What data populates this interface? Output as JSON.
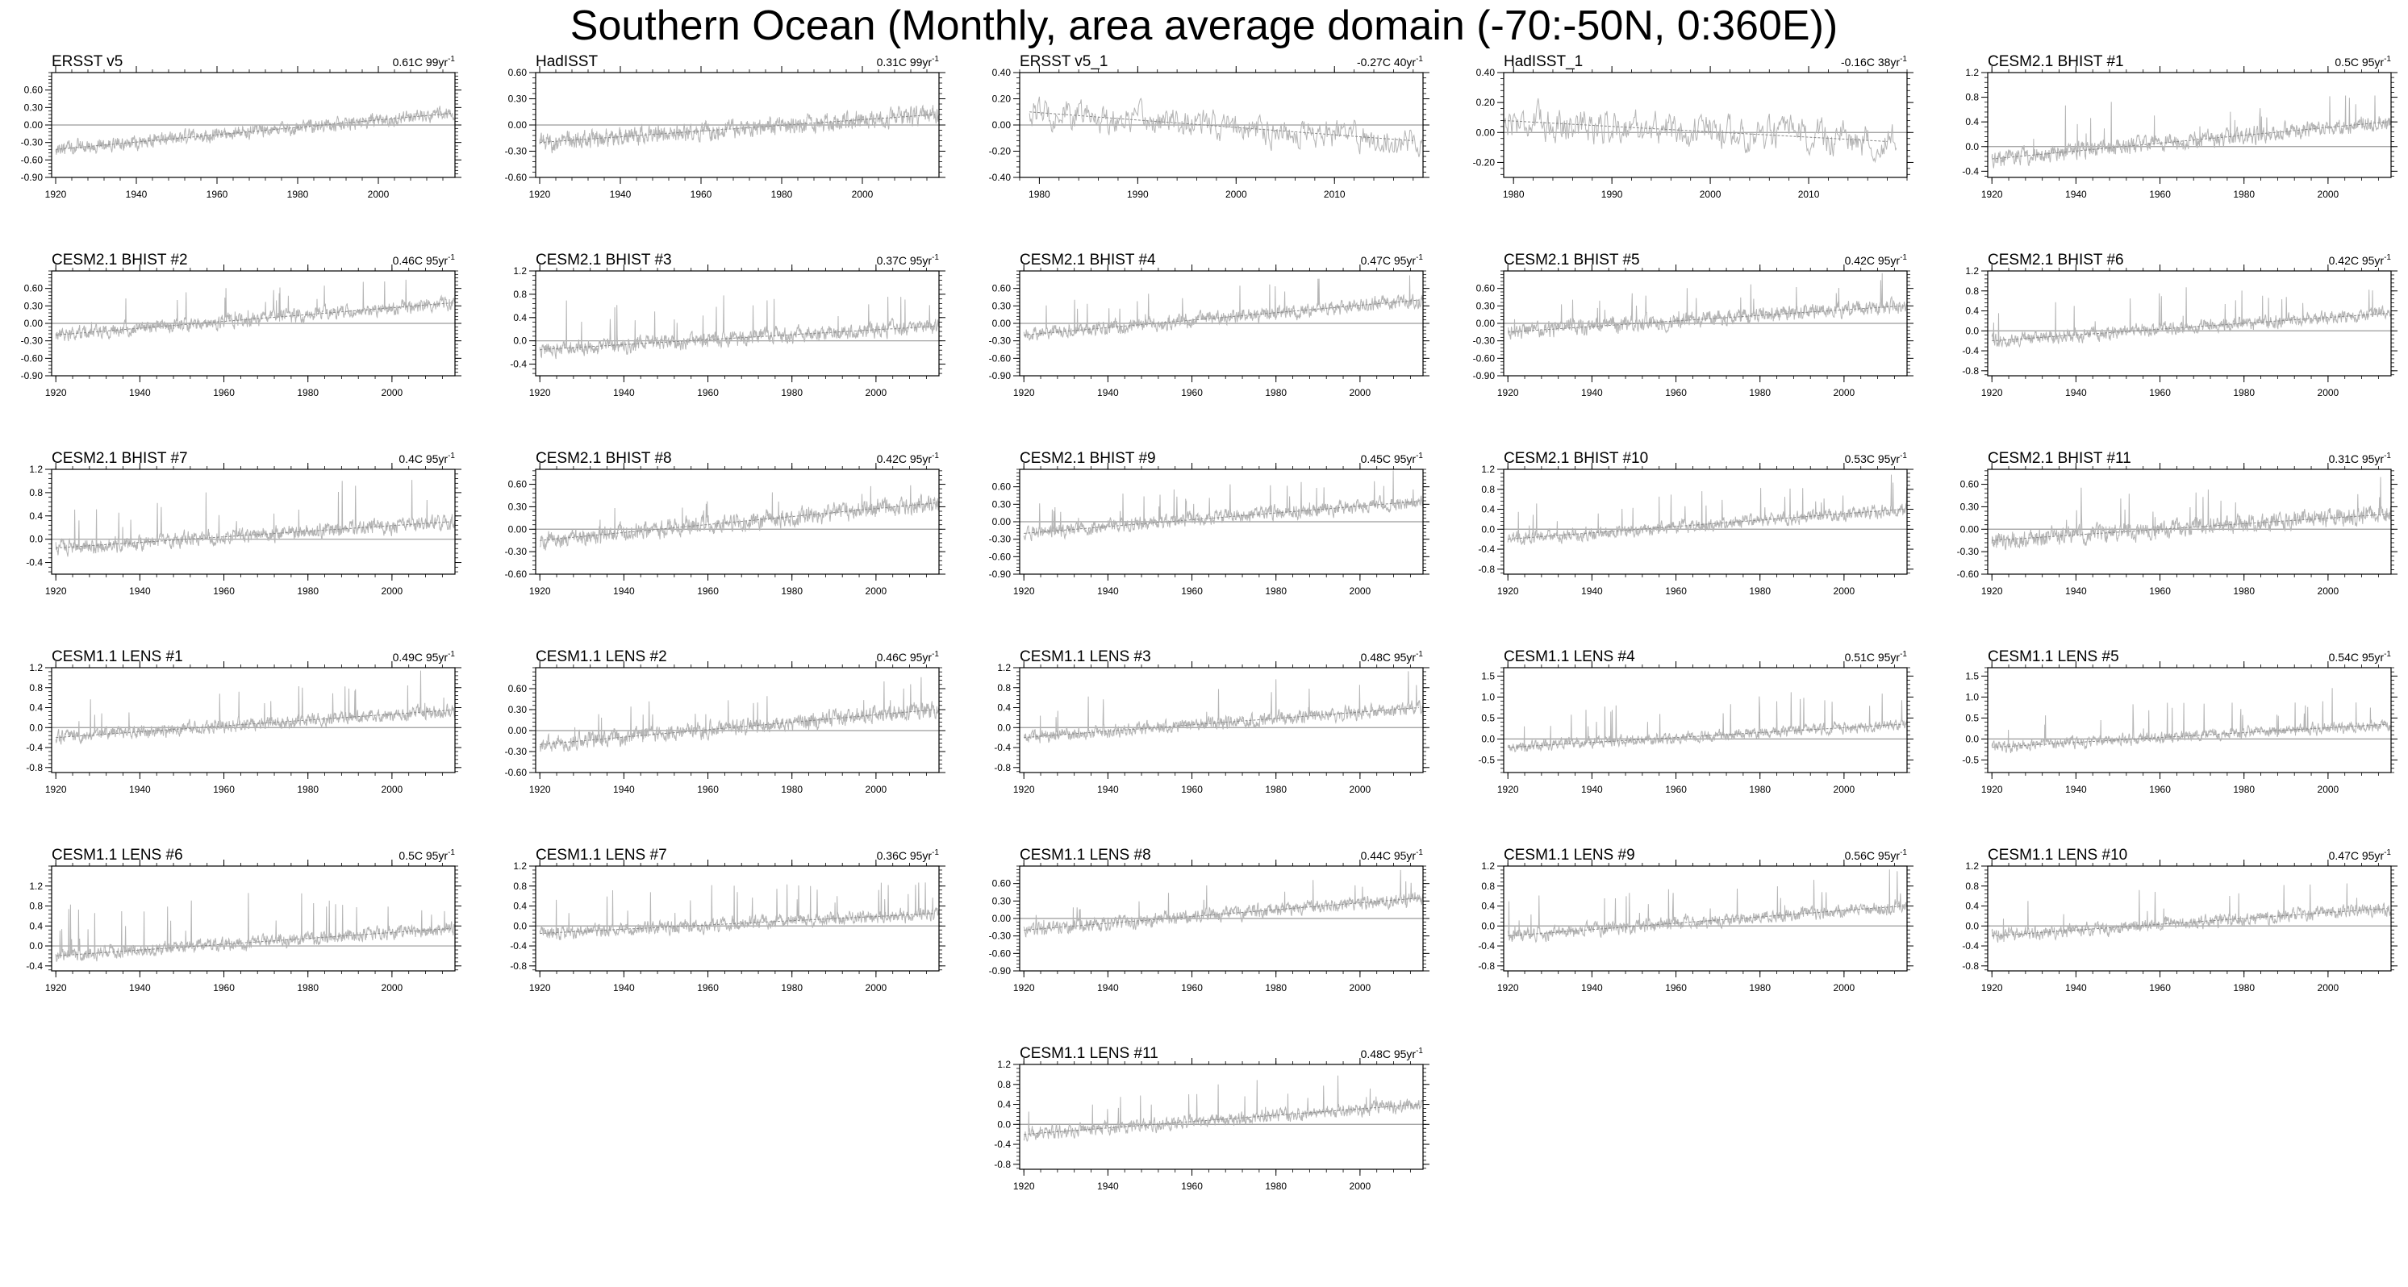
{
  "page": {
    "title": "Southern Ocean (Monthly, area average domain (-70:-50N, 0:360E))"
  },
  "chart_data": [
    {
      "type": "line",
      "title": "ERSST v5",
      "trend": "0.61C 99yr",
      "xlim": [
        1919,
        2019
      ],
      "xticks": [
        1920,
        1940,
        1960,
        1980,
        2000
      ],
      "yticks": [
        "0.60",
        "0.30",
        "0.00",
        "-0.30",
        "-0.60",
        "-0.90"
      ],
      "yvals": [
        0.6,
        0.3,
        0,
        -0.3,
        -0.6,
        -0.9
      ],
      "ylim": [
        -0.9,
        0.9
      ],
      "series": [
        {
          "start": 1920,
          "end": 2018,
          "trend_start": -0.42,
          "trend_end": 0.2,
          "noise": 0.09,
          "spike": 0.0
        }
      ]
    },
    {
      "type": "line",
      "title": "HadISST",
      "trend": "0.31C 99yr",
      "xlim": [
        1919,
        2019
      ],
      "xticks": [
        1920,
        1940,
        1960,
        1980,
        2000
      ],
      "yticks": [
        "0.60",
        "0.30",
        "0.00",
        "-0.30",
        "-0.60"
      ],
      "yvals": [
        0.6,
        0.3,
        0,
        -0.3,
        -0.6
      ],
      "ylim": [
        -0.6,
        0.6
      ],
      "series": [
        {
          "start": 1920,
          "end": 2018,
          "trend_start": -0.2,
          "trend_end": 0.12,
          "noise": 0.08,
          "spike": 0.0
        }
      ]
    },
    {
      "type": "line",
      "title": "ERSST v5_1",
      "trend": "-0.27C 40yr",
      "xlim": [
        1978,
        2019
      ],
      "xticks": [
        1980,
        1990,
        2000,
        2010
      ],
      "yticks": [
        "0.40",
        "0.20",
        "0.00",
        "-0.20",
        "-0.40"
      ],
      "yvals": [
        0.4,
        0.2,
        0,
        -0.2,
        -0.4
      ],
      "ylim": [
        -0.4,
        0.4
      ],
      "series": [
        {
          "start": 1979,
          "end": 2018,
          "trend_start": 0.1,
          "trend_end": -0.12,
          "noise": 0.09,
          "spike": 0.0
        }
      ]
    },
    {
      "type": "line",
      "title": "HadISST_1",
      "trend": "-0.16C 38yr",
      "xlim": [
        1979,
        2020
      ],
      "xticks": [
        1980,
        1990,
        2000,
        2010
      ],
      "yticks": [
        "0.40",
        "0.20",
        "0.00",
        "-0.20"
      ],
      "yvals": [
        0.4,
        0.2,
        0,
        -0.2
      ],
      "ylim": [
        -0.3,
        0.4
      ],
      "series": [
        {
          "start": 1979,
          "end": 2018,
          "trend_start": 0.08,
          "trend_end": -0.06,
          "noise": 0.09,
          "spike": 0.0
        }
      ]
    },
    {
      "type": "line",
      "title": "CESM2.1 BHIST #1",
      "trend": "0.5C 95yr",
      "xlim": [
        1919,
        2015
      ],
      "xticks": [
        1920,
        1940,
        1960,
        1980,
        2000
      ],
      "yticks": [
        "1.2",
        "0.8",
        "0.4",
        "0.0",
        "-0.4"
      ],
      "yvals": [
        1.2,
        0.8,
        0.4,
        0,
        -0.4
      ],
      "ylim": [
        -0.5,
        1.2
      ],
      "series": [
        {
          "start": 1920,
          "end": 2014,
          "trend_start": -0.2,
          "trend_end": 0.4,
          "noise": 0.1,
          "spike": 0.5
        }
      ]
    },
    {
      "type": "line",
      "title": "CESM2.1 BHIST #2",
      "trend": "0.46C 95yr",
      "xlim": [
        1919,
        2015
      ],
      "xticks": [
        1920,
        1940,
        1960,
        1980,
        2000
      ],
      "yticks": [
        "0.60",
        "0.30",
        "0.00",
        "-0.30",
        "-0.60",
        "-0.90"
      ],
      "yvals": [
        0.6,
        0.3,
        0,
        -0.3,
        -0.6,
        -0.9
      ],
      "ylim": [
        -0.9,
        0.9
      ],
      "series": [
        {
          "start": 1920,
          "end": 2014,
          "trend_start": -0.2,
          "trend_end": 0.35,
          "noise": 0.09,
          "spike": 0.35
        }
      ]
    },
    {
      "type": "line",
      "title": "CESM2.1 BHIST #3",
      "trend": "0.37C 95yr",
      "xlim": [
        1919,
        2015
      ],
      "xticks": [
        1920,
        1940,
        1960,
        1980,
        2000
      ],
      "yticks": [
        "1.2",
        "0.8",
        "0.4",
        "0.0",
        "-0.4"
      ],
      "yvals": [
        1.2,
        0.8,
        0.4,
        0,
        -0.4
      ],
      "ylim": [
        -0.6,
        1.2
      ],
      "series": [
        {
          "start": 1920,
          "end": 2014,
          "trend_start": -0.15,
          "trend_end": 0.25,
          "noise": 0.1,
          "spike": 0.5
        }
      ]
    },
    {
      "type": "line",
      "title": "CESM2.1 BHIST #4",
      "trend": "0.47C 95yr",
      "xlim": [
        1919,
        2015
      ],
      "xticks": [
        1920,
        1940,
        1960,
        1980,
        2000
      ],
      "yticks": [
        "0.60",
        "0.30",
        "0.00",
        "-0.30",
        "-0.60",
        "-0.90"
      ],
      "yvals": [
        0.6,
        0.3,
        0,
        -0.3,
        -0.6,
        -0.9
      ],
      "ylim": [
        -0.9,
        0.9
      ],
      "series": [
        {
          "start": 1920,
          "end": 2014,
          "trend_start": -0.2,
          "trend_end": 0.4,
          "noise": 0.09,
          "spike": 0.35
        }
      ]
    },
    {
      "type": "line",
      "title": "CESM2.1 BHIST #5",
      "trend": "0.42C 95yr",
      "xlim": [
        1919,
        2015
      ],
      "xticks": [
        1920,
        1940,
        1960,
        1980,
        2000
      ],
      "yticks": [
        "0.60",
        "0.30",
        "0.00",
        "-0.30",
        "-0.60",
        "-0.90"
      ],
      "yvals": [
        0.6,
        0.3,
        0,
        -0.3,
        -0.6,
        -0.9
      ],
      "ylim": [
        -0.9,
        0.9
      ],
      "series": [
        {
          "start": 1920,
          "end": 2014,
          "trend_start": -0.15,
          "trend_end": 0.3,
          "noise": 0.1,
          "spike": 0.35
        }
      ]
    },
    {
      "type": "line",
      "title": "CESM2.1 BHIST #6",
      "trend": "0.42C 95yr",
      "xlim": [
        1919,
        2015
      ],
      "xticks": [
        1920,
        1940,
        1960,
        1980,
        2000
      ],
      "yticks": [
        "1.2",
        "0.8",
        "0.4",
        "0.0",
        "-0.4",
        "-0.8"
      ],
      "yvals": [
        1.2,
        0.8,
        0.4,
        0,
        -0.4,
        -0.8
      ],
      "ylim": [
        -0.9,
        1.2
      ],
      "series": [
        {
          "start": 1920,
          "end": 2014,
          "trend_start": -0.2,
          "trend_end": 0.35,
          "noise": 0.1,
          "spike": 0.5
        }
      ]
    },
    {
      "type": "line",
      "title": "CESM2.1 BHIST #7",
      "trend": "0.4C 95yr",
      "xlim": [
        1919,
        2015
      ],
      "xticks": [
        1920,
        1940,
        1960,
        1980,
        2000
      ],
      "yticks": [
        "1.2",
        "0.8",
        "0.4",
        "0.0",
        "-0.4"
      ],
      "yvals": [
        1.2,
        0.8,
        0.4,
        0,
        -0.4
      ],
      "ylim": [
        -0.6,
        1.2
      ],
      "series": [
        {
          "start": 1920,
          "end": 2014,
          "trend_start": -0.15,
          "trend_end": 0.3,
          "noise": 0.1,
          "spike": 0.5
        }
      ]
    },
    {
      "type": "line",
      "title": "CESM2.1 BHIST #8",
      "trend": "0.42C 95yr",
      "xlim": [
        1919,
        2015
      ],
      "xticks": [
        1920,
        1940,
        1960,
        1980,
        2000
      ],
      "yticks": [
        "0.60",
        "0.30",
        "0.00",
        "-0.30",
        "-0.60"
      ],
      "yvals": [
        0.6,
        0.3,
        0,
        -0.3,
        -0.6
      ],
      "ylim": [
        -0.6,
        0.8
      ],
      "series": [
        {
          "start": 1920,
          "end": 2014,
          "trend_start": -0.15,
          "trend_end": 0.35,
          "noise": 0.09,
          "spike": 0.3
        }
      ]
    },
    {
      "type": "line",
      "title": "CESM2.1 BHIST #9",
      "trend": "0.45C 95yr",
      "xlim": [
        1919,
        2015
      ],
      "xticks": [
        1920,
        1940,
        1960,
        1980,
        2000
      ],
      "yticks": [
        "0.60",
        "0.30",
        "0.00",
        "-0.30",
        "-0.60",
        "-0.90"
      ],
      "yvals": [
        0.6,
        0.3,
        0,
        -0.3,
        -0.6,
        -0.9
      ],
      "ylim": [
        -0.9,
        0.9
      ],
      "series": [
        {
          "start": 1920,
          "end": 2014,
          "trend_start": -0.2,
          "trend_end": 0.35,
          "noise": 0.09,
          "spike": 0.35
        }
      ]
    },
    {
      "type": "line",
      "title": "CESM2.1 BHIST #10",
      "trend": "0.53C 95yr",
      "xlim": [
        1919,
        2015
      ],
      "xticks": [
        1920,
        1940,
        1960,
        1980,
        2000
      ],
      "yticks": [
        "1.2",
        "0.8",
        "0.4",
        "0.0",
        "-0.4",
        "-0.8"
      ],
      "yvals": [
        1.2,
        0.8,
        0.4,
        0,
        -0.4,
        -0.8
      ],
      "ylim": [
        -0.9,
        1.2
      ],
      "series": [
        {
          "start": 1920,
          "end": 2014,
          "trend_start": -0.2,
          "trend_end": 0.4,
          "noise": 0.1,
          "spike": 0.5
        }
      ]
    },
    {
      "type": "line",
      "title": "CESM2.1 BHIST #11",
      "trend": "0.31C 95yr",
      "xlim": [
        1919,
        2015
      ],
      "xticks": [
        1920,
        1940,
        1960,
        1980,
        2000
      ],
      "yticks": [
        "0.60",
        "0.30",
        "0.00",
        "-0.30",
        "-0.60"
      ],
      "yvals": [
        0.6,
        0.3,
        0,
        -0.3,
        -0.6
      ],
      "ylim": [
        -0.6,
        0.8
      ],
      "series": [
        {
          "start": 1920,
          "end": 2014,
          "trend_start": -0.15,
          "trend_end": 0.2,
          "noise": 0.09,
          "spike": 0.35
        }
      ]
    },
    {
      "type": "line",
      "title": "CESM1.1 LENS #1",
      "trend": "0.49C 95yr",
      "xlim": [
        1919,
        2015
      ],
      "xticks": [
        1920,
        1940,
        1960,
        1980,
        2000
      ],
      "yticks": [
        "1.2",
        "0.8",
        "0.4",
        "0.0",
        "-0.4",
        "-0.8"
      ],
      "yvals": [
        1.2,
        0.8,
        0.4,
        0,
        -0.4,
        -0.8
      ],
      "ylim": [
        -0.9,
        1.2
      ],
      "series": [
        {
          "start": 1920,
          "end": 2014,
          "trend_start": -0.2,
          "trend_end": 0.35,
          "noise": 0.1,
          "spike": 0.5
        }
      ]
    },
    {
      "type": "line",
      "title": "CESM1.1 LENS #2",
      "trend": "0.46C 95yr",
      "xlim": [
        1919,
        2015
      ],
      "xticks": [
        1920,
        1940,
        1960,
        1980,
        2000
      ],
      "yticks": [
        "0.60",
        "0.30",
        "0.00",
        "-0.30",
        "-0.60"
      ],
      "yvals": [
        0.6,
        0.3,
        0,
        -0.3,
        -0.6
      ],
      "ylim": [
        -0.6,
        0.9
      ],
      "series": [
        {
          "start": 1920,
          "end": 2014,
          "trend_start": -0.2,
          "trend_end": 0.3,
          "noise": 0.09,
          "spike": 0.35
        }
      ]
    },
    {
      "type": "line",
      "title": "CESM1.1 LENS #3",
      "trend": "0.48C 95yr",
      "xlim": [
        1919,
        2015
      ],
      "xticks": [
        1920,
        1940,
        1960,
        1980,
        2000
      ],
      "yticks": [
        "1.2",
        "0.8",
        "0.4",
        "0.0",
        "-0.4",
        "-0.8"
      ],
      "yvals": [
        1.2,
        0.8,
        0.4,
        0,
        -0.4,
        -0.8
      ],
      "ylim": [
        -0.9,
        1.2
      ],
      "series": [
        {
          "start": 1920,
          "end": 2014,
          "trend_start": -0.2,
          "trend_end": 0.4,
          "noise": 0.1,
          "spike": 0.5
        }
      ]
    },
    {
      "type": "line",
      "title": "CESM1.1 LENS #4",
      "trend": "0.51C 95yr",
      "xlim": [
        1919,
        2015
      ],
      "xticks": [
        1920,
        1940,
        1960,
        1980,
        2000
      ],
      "yticks": [
        "1.5",
        "1.0",
        "0.5",
        "0.0",
        "-0.5"
      ],
      "yvals": [
        1.5,
        1,
        0.5,
        0,
        -0.5
      ],
      "ylim": [
        -0.8,
        1.7
      ],
      "series": [
        {
          "start": 1920,
          "end": 2014,
          "trend_start": -0.2,
          "trend_end": 0.35,
          "noise": 0.1,
          "spike": 0.6
        }
      ]
    },
    {
      "type": "line",
      "title": "CESM1.1 LENS #5",
      "trend": "0.54C 95yr",
      "xlim": [
        1919,
        2015
      ],
      "xticks": [
        1920,
        1940,
        1960,
        1980,
        2000
      ],
      "yticks": [
        "1.5",
        "1.0",
        "0.5",
        "0.0",
        "-0.5"
      ],
      "yvals": [
        1.5,
        1,
        0.5,
        0,
        -0.5
      ],
      "ylim": [
        -0.8,
        1.7
      ],
      "series": [
        {
          "start": 1920,
          "end": 2014,
          "trend_start": -0.2,
          "trend_end": 0.35,
          "noise": 0.1,
          "spike": 0.6
        }
      ]
    },
    {
      "type": "line",
      "title": "CESM1.1 LENS #6",
      "trend": "0.5C 95yr",
      "xlim": [
        1919,
        2015
      ],
      "xticks": [
        1920,
        1940,
        1960,
        1980,
        2000
      ],
      "yticks": [
        "1.2",
        "0.8",
        "0.4",
        "0.0",
        "-0.4"
      ],
      "yvals": [
        1.2,
        0.8,
        0.4,
        0,
        -0.4
      ],
      "ylim": [
        -0.5,
        1.6
      ],
      "series": [
        {
          "start": 1920,
          "end": 2014,
          "trend_start": -0.2,
          "trend_end": 0.35,
          "noise": 0.1,
          "spike": 0.6
        }
      ]
    },
    {
      "type": "line",
      "title": "CESM1.1 LENS #7",
      "trend": "0.36C 95yr",
      "xlim": [
        1919,
        2015
      ],
      "xticks": [
        1920,
        1940,
        1960,
        1980,
        2000
      ],
      "yticks": [
        "1.2",
        "0.8",
        "0.4",
        "0.0",
        "-0.4",
        "-0.8"
      ],
      "yvals": [
        1.2,
        0.8,
        0.4,
        0,
        -0.4,
        -0.8
      ],
      "ylim": [
        -0.9,
        1.2
      ],
      "series": [
        {
          "start": 1920,
          "end": 2014,
          "trend_start": -0.15,
          "trend_end": 0.25,
          "noise": 0.1,
          "spike": 0.5
        }
      ]
    },
    {
      "type": "line",
      "title": "CESM1.1 LENS #8",
      "trend": "0.44C 95yr",
      "xlim": [
        1919,
        2015
      ],
      "xticks": [
        1920,
        1940,
        1960,
        1980,
        2000
      ],
      "yticks": [
        "0.60",
        "0.30",
        "0.00",
        "-0.30",
        "-0.60",
        "-0.90"
      ],
      "yvals": [
        0.6,
        0.3,
        0,
        -0.3,
        -0.6,
        -0.9
      ],
      "ylim": [
        -0.9,
        0.9
      ],
      "series": [
        {
          "start": 1920,
          "end": 2014,
          "trend_start": -0.2,
          "trend_end": 0.35,
          "noise": 0.09,
          "spike": 0.35
        }
      ]
    },
    {
      "type": "line",
      "title": "CESM1.1 LENS #9",
      "trend": "0.56C 95yr",
      "xlim": [
        1919,
        2015
      ],
      "xticks": [
        1920,
        1940,
        1960,
        1980,
        2000
      ],
      "yticks": [
        "1.2",
        "0.8",
        "0.4",
        "0.0",
        "-0.4",
        "-0.8"
      ],
      "yvals": [
        1.2,
        0.8,
        0.4,
        0,
        -0.4,
        -0.8
      ],
      "ylim": [
        -0.9,
        1.2
      ],
      "series": [
        {
          "start": 1920,
          "end": 2014,
          "trend_start": -0.2,
          "trend_end": 0.4,
          "noise": 0.1,
          "spike": 0.5
        }
      ]
    },
    {
      "type": "line",
      "title": "CESM1.1 LENS #10",
      "trend": "0.47C 95yr",
      "xlim": [
        1919,
        2015
      ],
      "xticks": [
        1920,
        1940,
        1960,
        1980,
        2000
      ],
      "yticks": [
        "1.2",
        "0.8",
        "0.4",
        "0.0",
        "-0.4",
        "-0.8"
      ],
      "yvals": [
        1.2,
        0.8,
        0.4,
        0,
        -0.4,
        -0.8
      ],
      "ylim": [
        -0.9,
        1.2
      ],
      "series": [
        {
          "start": 1920,
          "end": 2014,
          "trend_start": -0.2,
          "trend_end": 0.35,
          "noise": 0.1,
          "spike": 0.5
        }
      ]
    },
    {
      "type": "line",
      "title": "CESM1.1 LENS #11",
      "trend": "0.48C 95yr",
      "xlim": [
        1919,
        2015
      ],
      "xticks": [
        1920,
        1940,
        1960,
        1980,
        2000
      ],
      "yticks": [
        "1.2",
        "0.8",
        "0.4",
        "0.0",
        "-0.4",
        "-0.8"
      ],
      "yvals": [
        1.2,
        0.8,
        0.4,
        0,
        -0.4,
        -0.8
      ],
      "ylim": [
        -0.9,
        1.2
      ],
      "series": [
        {
          "start": 1920,
          "end": 2014,
          "trend_start": -0.2,
          "trend_end": 0.4,
          "noise": 0.1,
          "spike": 0.5
        }
      ]
    }
  ]
}
